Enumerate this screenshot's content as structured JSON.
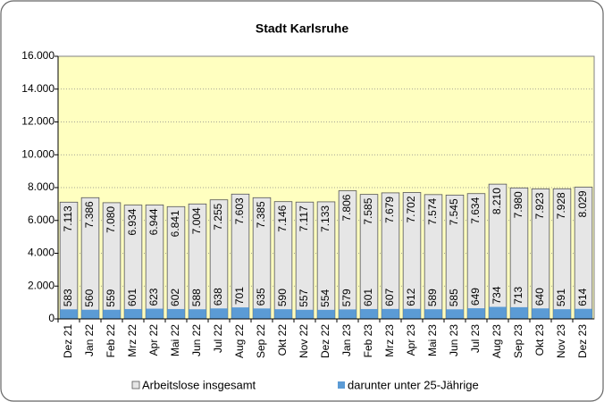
{
  "chart_data": {
    "type": "bar",
    "title": "Stadt Karlsruhe",
    "categories": [
      "Dez 21",
      "Jan 22",
      "Feb 22",
      "Mrz 22",
      "Apr 22",
      "Mai 22",
      "Jun 22",
      "Jul 22",
      "Aug 22",
      "Sep 22",
      "Okt 22",
      "Nov 22",
      "Dez 22",
      "Jan 23",
      "Feb 23",
      "Mrz 23",
      "Apr 23",
      "Mai 23",
      "Jun 23",
      "Jul 23",
      "Aug 23",
      "Sep 23",
      "Okt 23",
      "Nov 23",
      "Dez 23"
    ],
    "series": [
      {
        "name": "Arbeitslose insgesamt",
        "color": "#e6e6e6",
        "values": [
          7113,
          7386,
          7080,
          6934,
          6944,
          6841,
          7004,
          7255,
          7603,
          7385,
          7146,
          7117,
          7133,
          7806,
          7585,
          7679,
          7702,
          7574,
          7545,
          7634,
          8210,
          7980,
          7923,
          7928,
          8029
        ],
        "value_labels": [
          "7.113",
          "7.386",
          "7.080",
          "6.934",
          "6.944",
          "6.841",
          "7.004",
          "7.255",
          "7.603",
          "7.385",
          "7.146",
          "7.117",
          "7.133",
          "7.806",
          "7.585",
          "7.679",
          "7.702",
          "7.574",
          "7.545",
          "7.634",
          "8.210",
          "7.980",
          "7.923",
          "7.928",
          "8.029"
        ]
      },
      {
        "name": "darunter unter 25-Jährige",
        "color": "#5b9bd5",
        "values": [
          583,
          560,
          559,
          601,
          623,
          602,
          588,
          638,
          701,
          635,
          590,
          557,
          554,
          579,
          601,
          607,
          612,
          589,
          585,
          649,
          734,
          713,
          640,
          591,
          614
        ]
      }
    ],
    "ylim": [
      0,
      16000
    ],
    "yticks": [
      0,
      {
        "value": 2000,
        "label": "2.000"
      },
      {
        "value": 4000,
        "label": "4.000"
      },
      {
        "value": 6000,
        "label": "6.000"
      },
      {
        "value": 8000,
        "label": "8.000"
      },
      {
        "value": 10000,
        "label": "10.000"
      },
      {
        "value": 12000,
        "label": "12.000"
      },
      {
        "value": 14000,
        "label": "14.000"
      },
      {
        "value": 16000,
        "label": "16.000"
      }
    ],
    "grid": true
  }
}
